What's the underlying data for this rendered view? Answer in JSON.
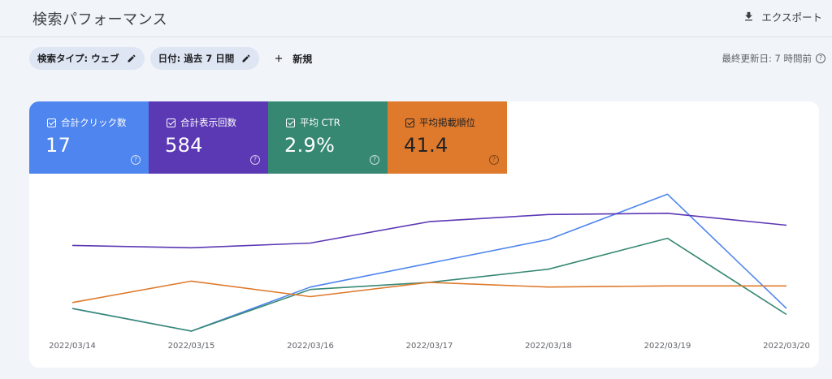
{
  "header": {
    "title": "検索パフォーマンス",
    "export_label": "エクスポート"
  },
  "filters": {
    "search_type": "検索タイプ: ウェブ",
    "date": "日付: 過去 7 日間",
    "new_label": "新規"
  },
  "last_updated": "最終更新日: 7 時間前",
  "metrics": [
    {
      "label": "合計クリック数",
      "value": "17",
      "color": "#4e85ee"
    },
    {
      "label": "合計表示回数",
      "value": "584",
      "color": "#5b38b4"
    },
    {
      "label": "平均 CTR",
      "value": "2.9%",
      "color": "#378873"
    },
    {
      "label": "平均掲載順位",
      "value": "41.4",
      "color": "#df7a2c"
    }
  ],
  "chart_data": {
    "type": "line",
    "x": [
      "2022/03/14",
      "2022/03/15",
      "2022/03/16",
      "2022/03/17",
      "2022/03/18",
      "2022/03/19",
      "2022/03/20"
    ],
    "series": [
      {
        "name": "合計クリック数",
        "color": "#4e85ee",
        "values": [
          0.19,
          0.0,
          0.37,
          0.57,
          0.77,
          1.15,
          0.19
        ]
      },
      {
        "name": "合計表示回数",
        "color": "#5b38b4",
        "values": [
          0.72,
          0.7,
          0.74,
          0.92,
          0.98,
          0.99,
          0.89
        ]
      },
      {
        "name": "平均 CTR",
        "color": "#378873",
        "values": [
          0.19,
          0.0,
          0.35,
          0.41,
          0.52,
          0.78,
          0.14
        ]
      },
      {
        "name": "平均掲載順位",
        "color": "#df7a2c",
        "values": [
          0.24,
          0.42,
          0.29,
          0.41,
          0.37,
          0.38,
          0.38
        ]
      }
    ],
    "ylim": [
      0,
      1.2
    ],
    "grid": false
  }
}
